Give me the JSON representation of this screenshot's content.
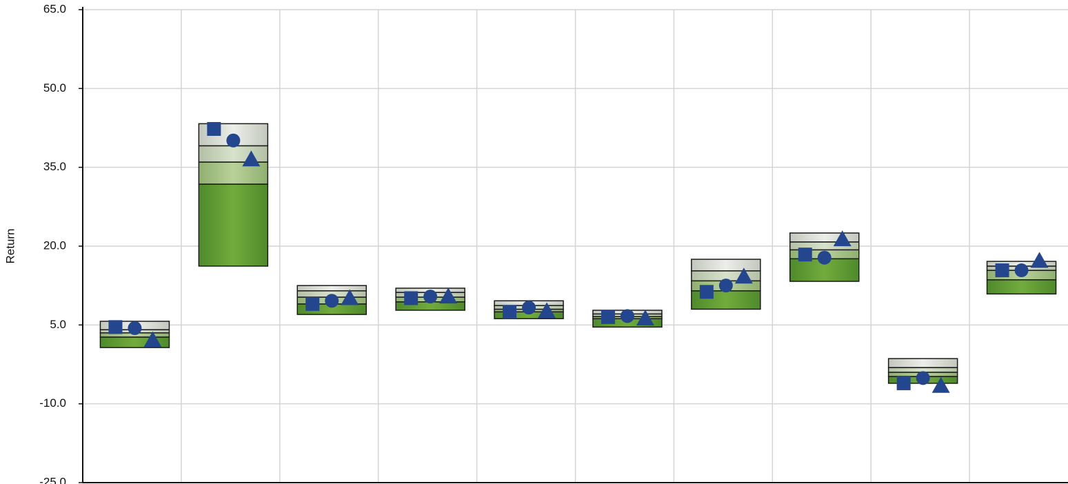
{
  "chart_data": {
    "type": "floating_bar",
    "y_label": "Return",
    "ylim": [
      -25,
      65
    ],
    "yticks": [
      {
        "value": -25,
        "label": "-25.0"
      },
      {
        "value": -10,
        "label": "-10.0"
      },
      {
        "value": 5,
        "label": "5.0"
      },
      {
        "value": 20,
        "label": "20.0"
      },
      {
        "value": 35,
        "label": "35.0"
      },
      {
        "value": 50,
        "label": "50.0"
      },
      {
        "value": 65,
        "label": "65.0"
      }
    ],
    "grid": true,
    "ranges": [
      [
        0.7,
        2.7,
        3.5,
        4.1,
        5.7
      ],
      [
        16.2,
        31.8,
        36.0,
        39.1,
        43.3
      ],
      [
        7.0,
        9.0,
        10.3,
        11.5,
        12.5
      ],
      [
        7.8,
        9.4,
        10.3,
        11.2,
        12.0
      ],
      [
        6.2,
        7.5,
        8.0,
        8.7,
        9.6
      ],
      [
        4.6,
        6.2,
        6.6,
        7.1,
        7.8
      ],
      [
        8.0,
        11.5,
        13.4,
        15.3,
        17.5
      ],
      [
        13.3,
        17.6,
        19.3,
        20.8,
        22.5
      ],
      [
        -6.1,
        -4.8,
        -4.0,
        -3.1,
        -1.4
      ],
      [
        10.9,
        13.6,
        15.4,
        16.2,
        17.1
      ]
    ],
    "series": [
      {
        "marker": "square",
        "color": "#23468f",
        "values": [
          4.6,
          42.3,
          9.0,
          10.1,
          7.5,
          6.5,
          11.3,
          18.4,
          -6.1,
          15.4
        ]
      },
      {
        "marker": "circle",
        "color": "#23468f",
        "values": [
          4.4,
          40.1,
          9.6,
          10.4,
          8.3,
          6.7,
          12.5,
          17.8,
          -5.1,
          15.4
        ]
      },
      {
        "marker": "triangle",
        "color": "#23468f",
        "values": [
          2.1,
          36.5,
          10.1,
          10.4,
          7.6,
          6.2,
          14.2,
          21.3,
          -6.6,
          17.2
        ]
      }
    ]
  }
}
